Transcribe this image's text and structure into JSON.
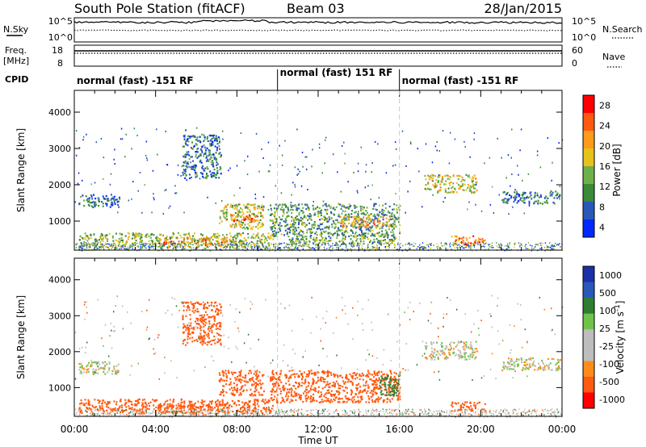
{
  "header": {
    "station": "South Pole Station (fitACF)",
    "beam": "Beam 03",
    "date": "28/Jan/2015"
  },
  "noise_panel": {
    "left_label": "N.Sky",
    "right_label": "N.Search",
    "left_ticks": [
      "10^5",
      "10^0"
    ],
    "right_ticks": [
      "10^5",
      "10^0"
    ]
  },
  "freq_panel": {
    "left_label_1": "Freq.",
    "left_label_2": "[MHz]",
    "left_ticks": [
      "18",
      "8"
    ],
    "right_label": "Nave",
    "right_ticks": [
      "60",
      "0"
    ]
  },
  "cpid": {
    "label": "CPID",
    "segments": [
      {
        "name": "normal (fast) -151 RF",
        "start_hour": 0,
        "end_hour": 10
      },
      {
        "name": "normal (fast) 151 RF",
        "start_hour": 10,
        "end_hour": 16
      },
      {
        "name": "normal (fast) -151 RF",
        "start_hour": 16,
        "end_hour": 24
      }
    ]
  },
  "colors": {
    "power_scale": [
      "#0028ff",
      "#2b57b8",
      "#3a8a3a",
      "#6fb04a",
      "#e6c21a",
      "#ff9a1a",
      "#ff5a10",
      "#ff0000"
    ],
    "velocity_scale": [
      "#ff0000",
      "#ff5a10",
      "#ff8c1a",
      "#bdbdbd",
      "#bdbdbd",
      "#6fc24a",
      "#2e7d32",
      "#2b57b8",
      "#1a2fa8"
    ],
    "ground_scatter": "#bdbdbd"
  },
  "chart_data": [
    {
      "type": "heatmap",
      "name": "power",
      "ylabel": "Slant Range [km]",
      "xlabel": "",
      "xlim": [
        0,
        24
      ],
      "ylim": [
        200,
        4600
      ],
      "yticks": [
        1000,
        2000,
        3000,
        4000
      ],
      "colorbar": {
        "label": "Power [dB]",
        "ticks": [
          "28",
          "24",
          "20",
          "16",
          "12",
          "8",
          "4"
        ],
        "range": [
          0,
          30
        ]
      },
      "echo_regions": [
        {
          "t0": 0.2,
          "t1": 2.2,
          "r0": 1400,
          "r1": 1750,
          "value": 6
        },
        {
          "t0": 0.2,
          "t1": 9.8,
          "r0": 300,
          "r1": 700,
          "value": 14
        },
        {
          "t0": 4.0,
          "t1": 7.5,
          "r0": 380,
          "r1": 560,
          "value": 22
        },
        {
          "t0": 5.3,
          "t1": 7.2,
          "r0": 2200,
          "r1": 3400,
          "value": 7
        },
        {
          "t0": 7.1,
          "t1": 9.3,
          "r0": 800,
          "r1": 1500,
          "value": 16
        },
        {
          "t0": 7.7,
          "t1": 9.0,
          "r0": 1000,
          "r1": 1200,
          "value": 24
        },
        {
          "t0": 9.6,
          "t1": 16.0,
          "r0": 600,
          "r1": 1500,
          "value": 10
        },
        {
          "t0": 10.5,
          "t1": 15.8,
          "r0": 350,
          "r1": 620,
          "value": 12
        },
        {
          "t0": 13.0,
          "t1": 15.5,
          "r0": 850,
          "r1": 1150,
          "value": 20
        },
        {
          "t0": 17.2,
          "t1": 19.8,
          "r0": 1800,
          "r1": 2300,
          "value": 16
        },
        {
          "t0": 18.5,
          "t1": 20.2,
          "r0": 350,
          "r1": 620,
          "value": 22
        },
        {
          "t0": 21.0,
          "t1": 23.9,
          "r0": 1500,
          "r1": 1850,
          "value": 8
        }
      ]
    },
    {
      "type": "heatmap",
      "name": "velocity",
      "ylabel": "Slant Range [km]",
      "xlabel": "Time UT",
      "xlim": [
        0,
        24
      ],
      "ylim": [
        200,
        4600
      ],
      "yticks": [
        1000,
        2000,
        3000,
        4000
      ],
      "xticks": [
        "00:00",
        "04:00",
        "08:00",
        "12:00",
        "16:00",
        "20:00",
        "00:00"
      ],
      "colorbar": {
        "label": "Velocity [m s^-1]",
        "ticks": [
          "1000",
          "500",
          "100",
          "25",
          "-25",
          "-100",
          "-500",
          "-1000"
        ]
      },
      "echo_regions": [
        {
          "t0": 0.2,
          "t1": 2.2,
          "r0": 1400,
          "r1": 1750,
          "value": 0
        },
        {
          "t0": 0.2,
          "t1": 9.8,
          "r0": 300,
          "r1": 700,
          "value": -300
        },
        {
          "t0": 4.0,
          "t1": 7.5,
          "r0": 380,
          "r1": 560,
          "value": -400
        },
        {
          "t0": 5.3,
          "t1": 7.2,
          "r0": 2200,
          "r1": 3400,
          "value": -200
        },
        {
          "t0": 7.1,
          "t1": 9.3,
          "r0": 800,
          "r1": 1500,
          "value": -400
        },
        {
          "t0": 9.6,
          "t1": 16.0,
          "r0": 600,
          "r1": 1500,
          "value": -300
        },
        {
          "t0": 15.0,
          "t1": 16.0,
          "r0": 800,
          "r1": 1400,
          "value": 300
        },
        {
          "t0": 17.2,
          "t1": 19.8,
          "r0": 1800,
          "r1": 2300,
          "value": 0
        },
        {
          "t0": 18.5,
          "t1": 20.2,
          "r0": 350,
          "r1": 620,
          "value": -400
        },
        {
          "t0": 21.0,
          "t1": 23.9,
          "r0": 1500,
          "r1": 1850,
          "value": 0
        }
      ]
    }
  ]
}
